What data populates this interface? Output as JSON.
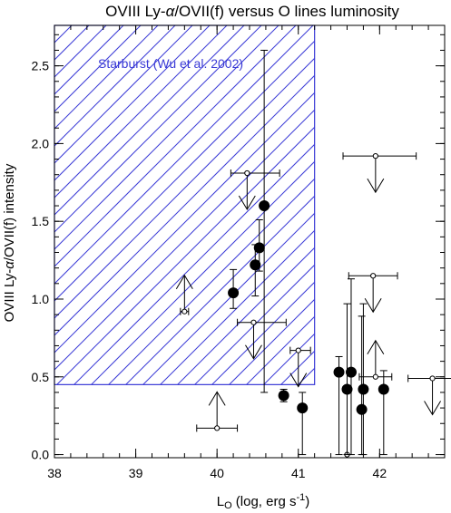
{
  "chart_data": {
    "type": "scatter",
    "title_parts": [
      "OVIII Ly-",
      "α",
      "/OVII(f) versus O lines luminosity"
    ],
    "xlabel": {
      "main": "L",
      "sub": "O",
      "rest": " (log, erg s",
      "sup": "-1",
      "end": ")"
    },
    "ylabel_parts": [
      "OVIII Ly-",
      "α",
      "/OVII(f) intensity"
    ],
    "xlim": [
      38,
      42.8
    ],
    "ylim": [
      -0.02,
      2.76
    ],
    "xticks": [
      "38",
      "39",
      "40",
      "41",
      "42"
    ],
    "yticks": [
      "0.0",
      "0.5",
      "1.0",
      "1.5",
      "2.0",
      "2.5"
    ],
    "xtick_values": [
      38,
      39,
      40,
      41,
      42
    ],
    "ytick_values": [
      0.0,
      0.5,
      1.0,
      1.5,
      2.0,
      2.5
    ],
    "region": {
      "label": "Starburst (Wu et al. 2002)",
      "x": [
        38,
        41.2
      ],
      "y": [
        0.45,
        2.76
      ],
      "color": "#3a3ad6"
    },
    "filled_points": [
      {
        "x": 40.2,
        "y": 1.04,
        "yerr": [
          0.1,
          0.15
        ]
      },
      {
        "x": 40.47,
        "y": 1.22,
        "yerr": [
          0.2,
          0.13
        ]
      },
      {
        "x": 40.52,
        "y": 1.33,
        "yerr": [
          0.15,
          0.18
        ]
      },
      {
        "x": 40.58,
        "y": 1.6,
        "yerr": [
          1.2,
          1.0
        ]
      },
      {
        "x": 40.82,
        "y": 0.38,
        "yerr": [
          0.04,
          0.04
        ]
      },
      {
        "x": 41.05,
        "y": 0.3,
        "yerr": [
          0.3,
          0.1
        ]
      },
      {
        "x": 41.5,
        "y": 0.53,
        "yerr": [
          0.53,
          0.1
        ]
      },
      {
        "x": 41.6,
        "y": 0.42,
        "yerr": [
          0.42,
          0.55
        ]
      },
      {
        "x": 41.65,
        "y": 0.53,
        "yerr": [
          0.53,
          0.6
        ]
      },
      {
        "x": 41.8,
        "y": 0.42,
        "yerr": [
          0.42,
          0.55
        ]
      },
      {
        "x": 41.78,
        "y": 0.29,
        "yerr": [
          0.29,
          0.6
        ]
      },
      {
        "x": 42.05,
        "y": 0.42,
        "yerr": [
          0.42,
          0.12
        ]
      }
    ],
    "open_points": [
      {
        "x": 40.37,
        "y": 1.81,
        "xerr": [
          0.2,
          0.4
        ],
        "limit": "upper"
      },
      {
        "x": 39.6,
        "y": 0.92,
        "xerr": [
          0.05,
          0.05
        ],
        "limit": "lower"
      },
      {
        "x": 40.45,
        "y": 0.85,
        "xerr": [
          0.2,
          0.4
        ],
        "limit": "upper"
      },
      {
        "x": 41.95,
        "y": 1.92,
        "xerr": [
          0.4,
          0.5
        ],
        "limit": "upper"
      },
      {
        "x": 41.92,
        "y": 1.15,
        "xerr": [
          0.3,
          0.3
        ],
        "limit": "upper"
      },
      {
        "x": 41.0,
        "y": 0.67,
        "xerr": [
          0.1,
          0.15
        ],
        "limit": "upper"
      },
      {
        "x": 40.0,
        "y": 0.17,
        "xerr": [
          0.25,
          0.25
        ],
        "limit": "lower"
      },
      {
        "x": 41.95,
        "y": 0.5,
        "xerr": [
          0.2,
          0.2
        ],
        "limit": "lower"
      },
      {
        "x": 42.65,
        "y": 0.49,
        "xerr": [
          0.3,
          0.3
        ],
        "limit": "upper"
      },
      {
        "x": 41.6,
        "y": 0.0,
        "xerr": [
          0,
          0
        ],
        "limit": "none"
      }
    ]
  }
}
